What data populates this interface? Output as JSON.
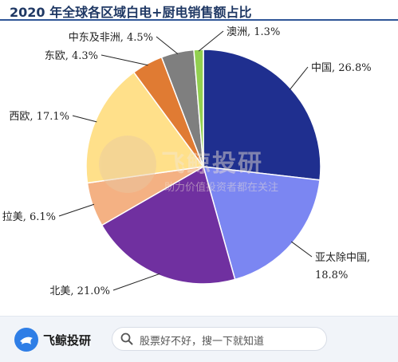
{
  "chart_data": {
    "type": "pie",
    "title": "2020 年全球各区域白电+厨电销售额占比",
    "slices": [
      {
        "label": "中国",
        "value": 26.8,
        "display": "中国, 26.8%",
        "color": "#1f2f8f"
      },
      {
        "label": "亚太除中国",
        "value": 18.8,
        "display": "亚太除中国, 18.8%",
        "color": "#7b86f2"
      },
      {
        "label": "北美",
        "value": 21.0,
        "display": "北美, 21.0%",
        "color": "#7030a0"
      },
      {
        "label": "拉美",
        "value": 6.1,
        "display": "拉美, 6.1%",
        "color": "#f4b183"
      },
      {
        "label": "西欧",
        "value": 17.1,
        "display": "西欧, 17.1%",
        "color": "#ffe08a"
      },
      {
        "label": "东欧",
        "value": 4.3,
        "display": "东欧, 4.3%",
        "color": "#e07b33"
      },
      {
        "label": "中东及非洲",
        "value": 4.5,
        "display": "中东及非洲, 4.5%",
        "color": "#7f7f7f"
      },
      {
        "label": "澳洲",
        "value": 1.3,
        "display": "澳洲, 1.3%",
        "color": "#92d050"
      }
    ],
    "start_direction": "12 o'clock",
    "order": "clockwise",
    "legend": "none"
  },
  "watermark": {
    "name": "飞鲸投研",
    "slogan": "助力价值投资者都在关注"
  },
  "footer": {
    "brand_name": "飞鲸投研",
    "search_text": "股票好不好，搜一下就知道"
  }
}
